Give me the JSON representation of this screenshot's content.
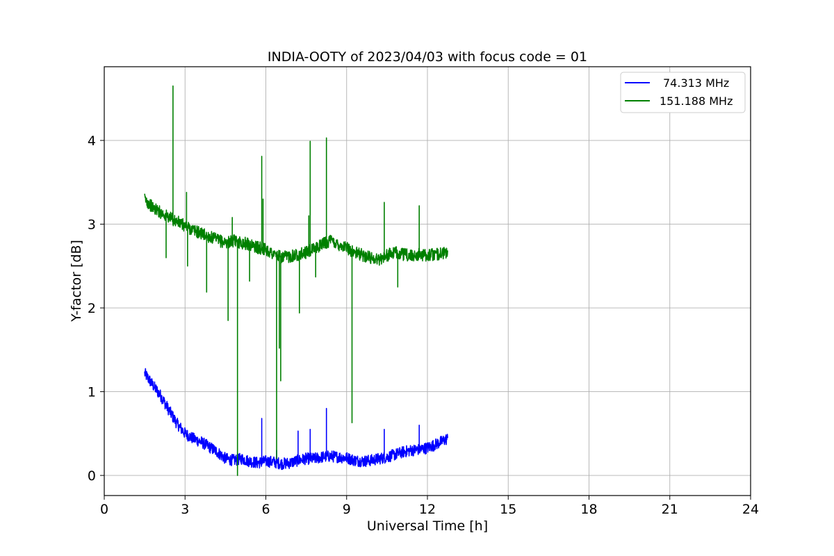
{
  "chart_data": {
    "type": "line",
    "title": "INDIA-OOTY of 2023/04/03 with focus code = 01",
    "xlabel": "Universal Time [h]",
    "ylabel": "Y-factor [dB]",
    "xlim": [
      0,
      24
    ],
    "ylim": [
      -0.24,
      4.88
    ],
    "xticks": [
      0,
      3,
      6,
      9,
      12,
      15,
      18,
      21,
      24
    ],
    "yticks": [
      0,
      1,
      2,
      3,
      4
    ],
    "grid": true,
    "legend_position": "top-right",
    "series": [
      {
        "name": "74.313 MHz",
        "color": "#0000ff",
        "x": [
          1.5,
          1.8,
          2.1,
          2.4,
          2.7,
          3.0,
          3.3,
          3.6,
          3.9,
          4.2,
          4.5,
          4.8,
          5.1,
          5.4,
          5.7,
          6.0,
          6.3,
          6.6,
          6.9,
          7.2,
          7.5,
          7.8,
          8.1,
          8.4,
          8.7,
          9.0,
          9.3,
          9.6,
          9.9,
          10.2,
          10.5,
          10.8,
          11.1,
          11.4,
          11.7,
          12.0,
          12.3,
          12.75
        ],
        "y": [
          1.22,
          1.08,
          0.95,
          0.78,
          0.62,
          0.5,
          0.44,
          0.4,
          0.34,
          0.28,
          0.2,
          0.18,
          0.2,
          0.17,
          0.15,
          0.17,
          0.16,
          0.14,
          0.15,
          0.18,
          0.2,
          0.2,
          0.22,
          0.23,
          0.22,
          0.21,
          0.18,
          0.17,
          0.18,
          0.2,
          0.22,
          0.25,
          0.28,
          0.3,
          0.31,
          0.33,
          0.37,
          0.44
        ],
        "spikes": [
          {
            "x": 5.85,
            "y": 0.68
          },
          {
            "x": 6.4,
            "y": 0.3
          },
          {
            "x": 7.2,
            "y": 0.53
          },
          {
            "x": 7.65,
            "y": 0.55
          },
          {
            "x": 8.25,
            "y": 0.8
          },
          {
            "x": 10.4,
            "y": 0.55
          },
          {
            "x": 11.7,
            "y": 0.6
          }
        ]
      },
      {
        "name": "151.188 MHz",
        "color": "#008000",
        "x": [
          1.5,
          1.8,
          2.1,
          2.4,
          2.7,
          3.0,
          3.3,
          3.6,
          3.9,
          4.2,
          4.5,
          4.8,
          5.1,
          5.4,
          5.7,
          6.0,
          6.3,
          6.6,
          6.9,
          7.2,
          7.5,
          7.8,
          8.1,
          8.4,
          8.7,
          9.0,
          9.3,
          9.6,
          9.9,
          10.2,
          10.5,
          10.8,
          11.1,
          11.4,
          11.7,
          12.0,
          12.3,
          12.75
        ],
        "y": [
          3.3,
          3.2,
          3.14,
          3.08,
          3.03,
          2.98,
          2.93,
          2.89,
          2.85,
          2.81,
          2.78,
          2.8,
          2.78,
          2.76,
          2.72,
          2.7,
          2.64,
          2.6,
          2.62,
          2.64,
          2.66,
          2.7,
          2.77,
          2.8,
          2.76,
          2.72,
          2.66,
          2.63,
          2.6,
          2.58,
          2.63,
          2.66,
          2.64,
          2.62,
          2.64,
          2.63,
          2.64,
          2.66
        ],
        "spikes": [
          {
            "x": 2.3,
            "y": 2.6
          },
          {
            "x": 2.55,
            "y": 4.65
          },
          {
            "x": 3.05,
            "y": 3.38
          },
          {
            "x": 3.1,
            "y": 2.5
          },
          {
            "x": 3.8,
            "y": 2.19
          },
          {
            "x": 4.6,
            "y": 1.85
          },
          {
            "x": 4.75,
            "y": 3.08
          },
          {
            "x": 4.95,
            "y": 0.0
          },
          {
            "x": 5.4,
            "y": 2.32
          },
          {
            "x": 5.85,
            "y": 3.81
          },
          {
            "x": 5.9,
            "y": 3.3
          },
          {
            "x": 6.4,
            "y": 0.2
          },
          {
            "x": 6.5,
            "y": 1.52
          },
          {
            "x": 6.55,
            "y": 1.13
          },
          {
            "x": 7.25,
            "y": 1.94
          },
          {
            "x": 7.6,
            "y": 3.1
          },
          {
            "x": 7.65,
            "y": 3.99
          },
          {
            "x": 7.85,
            "y": 2.37
          },
          {
            "x": 8.25,
            "y": 4.03
          },
          {
            "x": 9.2,
            "y": 0.63
          },
          {
            "x": 10.4,
            "y": 3.26
          },
          {
            "x": 10.9,
            "y": 2.25
          },
          {
            "x": 11.7,
            "y": 3.22
          }
        ]
      }
    ]
  }
}
